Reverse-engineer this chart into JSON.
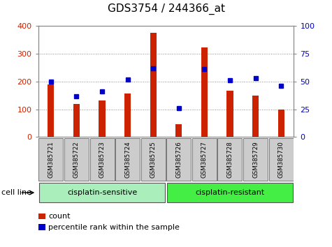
{
  "title": "GDS3754 / 244366_at",
  "samples": [
    "GSM385721",
    "GSM385722",
    "GSM385723",
    "GSM385724",
    "GSM385725",
    "GSM385726",
    "GSM385727",
    "GSM385728",
    "GSM385729",
    "GSM385730"
  ],
  "counts": [
    190,
    120,
    132,
    158,
    375,
    46,
    323,
    167,
    150,
    100
  ],
  "percentile_ranks": [
    50,
    37,
    41,
    52,
    62,
    26,
    61,
    51,
    53,
    46
  ],
  "group1_label": "cisplatin-sensitive",
  "group1_count": 5,
  "group2_label": "cisplatin-resistant",
  "group2_count": 5,
  "cell_line_label": "cell line",
  "legend_count": "count",
  "legend_pct": "percentile rank within the sample",
  "bar_color": "#cc2200",
  "dot_color": "#0000cc",
  "group1_color": "#aaeebb",
  "group2_color": "#44ee44",
  "ylim_left": [
    0,
    400
  ],
  "ylim_right": [
    0,
    100
  ],
  "yticks_left": [
    0,
    100,
    200,
    300,
    400
  ],
  "yticks_right": [
    0,
    25,
    50,
    75,
    100
  ],
  "dotted_grid_color": "#888888",
  "title_fontsize": 11,
  "tick_fontsize": 8,
  "bar_width": 0.25
}
